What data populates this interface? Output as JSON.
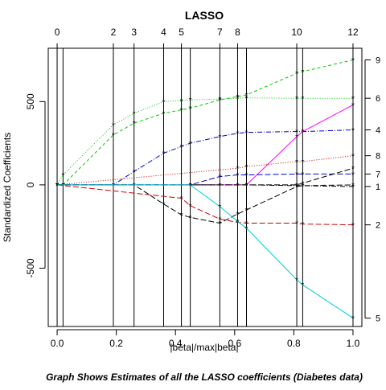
{
  "chart_data": {
    "type": "line",
    "title": "LASSO",
    "xlabel": "|beta|/max|beta|",
    "ylabel": "Standardized Coefficients",
    "caption": "Graph Shows Estimates of all the LASSO coefficients (Diabetes data)",
    "xlim": [
      -0.03,
      1.03
    ],
    "ylim": [
      -850,
      820
    ],
    "x_ticks": [
      "0.0",
      "0.2",
      "0.4",
      "0.6",
      "0.8",
      "1.0"
    ],
    "y_ticks": [
      {
        "value": -500,
        "label": "-500"
      },
      {
        "value": 0,
        "label": "0"
      },
      {
        "value": 500,
        "label": "500"
      }
    ],
    "breakpoints": [
      0.0,
      0.02,
      0.19,
      0.26,
      0.36,
      0.42,
      0.45,
      0.55,
      0.61,
      0.64,
      0.81,
      0.83,
      1.0
    ],
    "step_labels": [
      {
        "x": 0.0,
        "label": "0"
      },
      {
        "x": 0.19,
        "label": "2"
      },
      {
        "x": 0.26,
        "label": "3"
      },
      {
        "x": 0.36,
        "label": "4"
      },
      {
        "x": 0.42,
        "label": "5"
      },
      {
        "x": 0.55,
        "label": "7"
      },
      {
        "x": 0.61,
        "label": "8"
      },
      {
        "x": 0.81,
        "label": "10"
      },
      {
        "x": 1.0,
        "label": "12"
      }
    ],
    "right_axis_labels": [
      "9",
      "6",
      "4",
      "8",
      "7",
      "1",
      "2",
      "5"
    ],
    "series": [
      {
        "color": "#00cd00",
        "dash": "4,3",
        "right_label": "9",
        "x": [
          0.0,
          0.02,
          0.19,
          0.26,
          0.36,
          0.42,
          0.45,
          0.55,
          0.61,
          0.64,
          0.81,
          0.83,
          1.0
        ],
        "y": [
          0,
          0,
          300,
          370,
          430,
          450,
          460,
          510,
          530,
          540,
          670,
          680,
          750
        ]
      },
      {
        "color": "#00cd00",
        "dash": "1,2",
        "right_label": "6",
        "x": [
          0.0,
          0.02,
          0.19,
          0.26,
          0.36,
          0.42,
          0.45,
          0.55,
          0.61,
          0.64,
          0.81,
          0.83,
          1.0
        ],
        "y": [
          0,
          60,
          360,
          430,
          500,
          505,
          510,
          515,
          520,
          522,
          520,
          520,
          520
        ]
      },
      {
        "color": "#0000cd",
        "dash": "6,2,1,2",
        "right_label": "4",
        "x": [
          0.0,
          0.02,
          0.19,
          0.26,
          0.36,
          0.42,
          0.45,
          0.55,
          0.61,
          0.64,
          0.81,
          0.83,
          1.0
        ],
        "y": [
          0,
          0,
          0,
          80,
          190,
          230,
          250,
          290,
          310,
          315,
          320,
          320,
          330
        ]
      },
      {
        "color": "#ff00ff",
        "dash": "",
        "right_label": "",
        "x": [
          0.0,
          0.64,
          0.81,
          0.83,
          1.0
        ],
        "y": [
          0,
          0,
          290,
          320,
          480
        ]
      },
      {
        "color": "#cd0000",
        "dash": "1,2",
        "right_label": "8",
        "x": [
          0.0,
          0.61,
          0.64,
          0.81,
          0.83,
          1.0
        ],
        "y": [
          0,
          100,
          110,
          140,
          140,
          175
        ]
      },
      {
        "color": "#0000cd",
        "dash": "7,3",
        "right_label": "7",
        "x": [
          0.0,
          0.45,
          0.55,
          0.61,
          0.64,
          0.81,
          0.83,
          1.0
        ],
        "y": [
          0,
          0,
          50,
          60,
          60,
          65,
          65,
          65
        ]
      },
      {
        "color": "#000000",
        "dash": "7,3",
        "right_label": "",
        "x": [
          0.0,
          0.81,
          0.83,
          1.0
        ],
        "y": [
          0,
          0,
          10,
          100
        ]
      },
      {
        "color": "#000000",
        "dash": "6,2,1,2",
        "right_label": "1",
        "x": [
          0.0,
          0.55,
          0.61,
          0.64,
          0.81,
          0.83,
          1.0
        ],
        "y": [
          0,
          0,
          0,
          0,
          -5,
          -5,
          -10
        ]
      },
      {
        "color": "#cd0000",
        "dash": "7,3",
        "right_label": "2",
        "x": [
          0.0,
          0.42,
          0.45,
          0.55,
          0.61,
          0.64,
          0.81,
          0.83,
          1.0
        ],
        "y": [
          0,
          -80,
          -125,
          -205,
          -225,
          -230,
          -230,
          -235,
          -240
        ]
      },
      {
        "color": "#000000",
        "dash": "7,3",
        "right_label": "",
        "x": [
          0.0,
          0.26,
          0.36,
          0.42,
          0.45,
          0.55,
          0.61,
          0.64,
          0.81,
          0.83,
          1.0
        ],
        "y": [
          0,
          0,
          -115,
          -180,
          -195,
          -230,
          -175,
          -150,
          -10,
          -5,
          0
        ]
      },
      {
        "color": "#00cdcd",
        "dash": "",
        "right_label": "5",
        "x": [
          0.0,
          0.45,
          0.55,
          0.61,
          0.64,
          0.81,
          0.83,
          1.0
        ],
        "y": [
          0,
          0,
          -130,
          -220,
          -260,
          -570,
          -600,
          -800
        ]
      }
    ]
  }
}
